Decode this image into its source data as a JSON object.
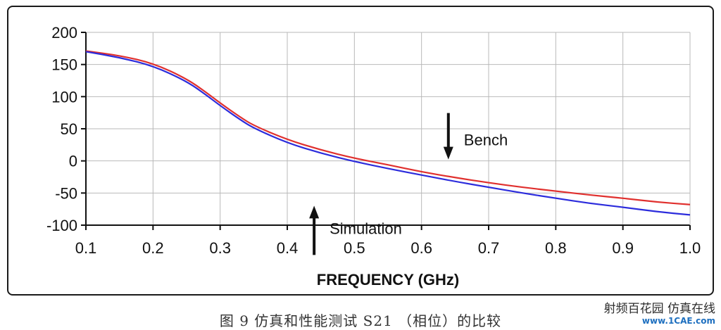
{
  "chart_data": {
    "type": "line",
    "xlabel": "FREQUENCY (GHz)",
    "ylabel": "",
    "xlim": [
      0.1,
      1.0
    ],
    "ylim": [
      -100,
      200
    ],
    "xticks": [
      "0.1",
      "0.2",
      "0.3",
      "0.4",
      "0.5",
      "0.6",
      "0.7",
      "0.8",
      "0.9",
      "1.0"
    ],
    "yticks": [
      "200",
      "150",
      "100",
      "50",
      "0",
      "-50",
      "-100"
    ],
    "grid": true,
    "series": [
      {
        "name": "Bench",
        "color": "#e0302e",
        "x": [
          0.1,
          0.15,
          0.2,
          0.25,
          0.28,
          0.3,
          0.33,
          0.35,
          0.4,
          0.45,
          0.5,
          0.55,
          0.6,
          0.65,
          0.7,
          0.75,
          0.8,
          0.85,
          0.9,
          0.95,
          1.0
        ],
        "y": [
          171,
          164,
          152,
          128,
          106,
          90,
          68,
          55,
          33,
          17,
          4,
          -6,
          -17,
          -26,
          -34,
          -41,
          -47,
          -53,
          -58,
          -64,
          -68
        ]
      },
      {
        "name": "Simulation",
        "color": "#2c2cdc",
        "x": [
          0.1,
          0.15,
          0.2,
          0.25,
          0.28,
          0.3,
          0.33,
          0.35,
          0.4,
          0.45,
          0.5,
          0.55,
          0.6,
          0.65,
          0.7,
          0.75,
          0.8,
          0.85,
          0.9,
          0.95,
          1.0
        ],
        "y": [
          170,
          161,
          148,
          124,
          102,
          86,
          64,
          51,
          28,
          12,
          -1,
          -12,
          -22,
          -32,
          -41,
          -50,
          -58,
          -66,
          -72,
          -79,
          -84
        ]
      }
    ],
    "annotations": [
      {
        "text": "Bench",
        "arrow": "down",
        "x": 0.64,
        "y": 0
      },
      {
        "text": "Simulation",
        "arrow": "up",
        "x": 0.44,
        "y": -50
      }
    ]
  },
  "caption": "图 9  仿真和性能测试 S21 （相位）的比较",
  "watermark": {
    "line1": "射频百花园 仿真在线",
    "line2": "www.1CAE.com",
    "logo_icon": "wechat-icon"
  }
}
